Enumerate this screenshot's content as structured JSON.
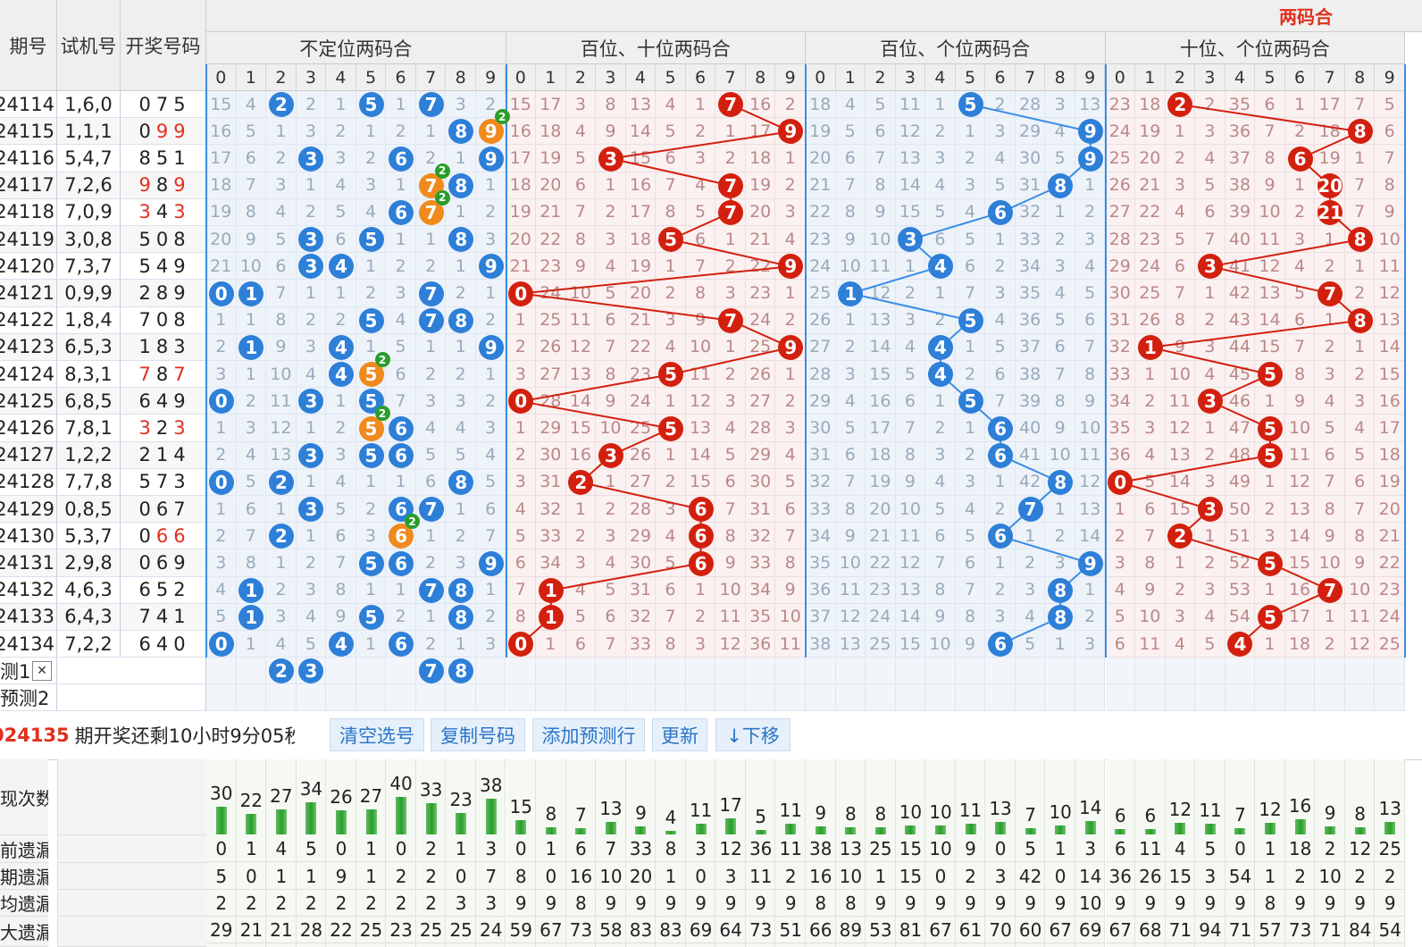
{
  "header": {
    "col_period": "期号",
    "col_trial": "试机号",
    "col_result": "开奖号码",
    "top_label": "两码合",
    "groups": [
      "不定位两码合",
      "百位、十位两码合",
      "百位、个位两码合",
      "十位、个位两码合"
    ]
  },
  "rows": [
    {
      "period": "24114",
      "trial": "1,6,0",
      "result": [
        "0",
        "7",
        "5"
      ],
      "red": [
        false,
        false,
        false
      ]
    },
    {
      "period": "24115",
      "trial": "1,1,1",
      "result": [
        "0",
        "9",
        "9"
      ],
      "red": [
        false,
        true,
        true
      ]
    },
    {
      "period": "24116",
      "trial": "5,4,7",
      "result": [
        "8",
        "5",
        "1"
      ],
      "red": [
        false,
        false,
        false
      ]
    },
    {
      "period": "24117",
      "trial": "7,2,6",
      "result": [
        "9",
        "8",
        "9"
      ],
      "red": [
        true,
        false,
        true
      ]
    },
    {
      "period": "24118",
      "trial": "7,0,9",
      "result": [
        "3",
        "4",
        "3"
      ],
      "red": [
        true,
        false,
        true
      ]
    },
    {
      "period": "24119",
      "trial": "3,0,8",
      "result": [
        "5",
        "0",
        "8"
      ],
      "red": [
        false,
        false,
        false
      ]
    },
    {
      "period": "24120",
      "trial": "7,3,7",
      "result": [
        "5",
        "4",
        "9"
      ],
      "red": [
        false,
        false,
        false
      ]
    },
    {
      "period": "24121",
      "trial": "0,9,9",
      "result": [
        "2",
        "8",
        "9"
      ],
      "red": [
        false,
        false,
        false
      ]
    },
    {
      "period": "24122",
      "trial": "1,8,4",
      "result": [
        "7",
        "0",
        "8"
      ],
      "red": [
        false,
        false,
        false
      ]
    },
    {
      "period": "24123",
      "trial": "6,5,3",
      "result": [
        "1",
        "8",
        "3"
      ],
      "red": [
        false,
        false,
        false
      ]
    },
    {
      "period": "24124",
      "trial": "8,3,1",
      "result": [
        "7",
        "8",
        "7"
      ],
      "red": [
        true,
        false,
        true
      ]
    },
    {
      "period": "24125",
      "trial": "6,8,5",
      "result": [
        "6",
        "4",
        "9"
      ],
      "red": [
        false,
        false,
        false
      ]
    },
    {
      "period": "24126",
      "trial": "7,8,1",
      "result": [
        "3",
        "2",
        "3"
      ],
      "red": [
        true,
        false,
        true
      ]
    },
    {
      "period": "24127",
      "trial": "1,2,2",
      "result": [
        "2",
        "1",
        "4"
      ],
      "red": [
        false,
        false,
        false
      ]
    },
    {
      "period": "24128",
      "trial": "7,7,8",
      "result": [
        "5",
        "7",
        "3"
      ],
      "red": [
        false,
        false,
        false
      ]
    },
    {
      "period": "24129",
      "trial": "0,8,5",
      "result": [
        "0",
        "6",
        "7"
      ],
      "red": [
        false,
        false,
        false
      ]
    },
    {
      "period": "24130",
      "trial": "5,3,7",
      "result": [
        "0",
        "6",
        "6"
      ],
      "red": [
        false,
        true,
        true
      ]
    },
    {
      "period": "24131",
      "trial": "2,9,8",
      "result": [
        "0",
        "6",
        "9"
      ],
      "red": [
        false,
        false,
        false
      ]
    },
    {
      "period": "24132",
      "trial": "4,6,3",
      "result": [
        "6",
        "5",
        "2"
      ],
      "red": [
        false,
        false,
        false
      ]
    },
    {
      "period": "24133",
      "trial": "6,4,3",
      "result": [
        "7",
        "4",
        "1"
      ],
      "red": [
        false,
        false,
        false
      ]
    },
    {
      "period": "24134",
      "trial": "7,2,2",
      "result": [
        "6",
        "4",
        "0"
      ],
      "red": [
        false,
        false,
        false
      ]
    }
  ],
  "grid": [
    [
      "15",
      "4",
      "2",
      "2",
      "1",
      "5",
      "1",
      "7",
      "3",
      "2",
      "15",
      "17",
      "3",
      "8",
      "13",
      "4",
      "1",
      "7",
      "16",
      "2",
      "18",
      "4",
      "5",
      "11",
      "1",
      "5",
      "2",
      "28",
      "3",
      "13",
      "23",
      "18",
      "2",
      "2",
      "35",
      "6",
      "1",
      "17",
      "7",
      "5"
    ],
    [
      "16",
      "5",
      "1",
      "3",
      "2",
      "1",
      "2",
      "1",
      "8",
      "9",
      "16",
      "18",
      "4",
      "9",
      "14",
      "5",
      "2",
      "1",
      "17",
      "9",
      "19",
      "5",
      "6",
      "12",
      "2",
      "1",
      "3",
      "29",
      "4",
      "9",
      "24",
      "19",
      "1",
      "3",
      "36",
      "7",
      "2",
      "18",
      "8",
      "6"
    ],
    [
      "17",
      "6",
      "2",
      "3",
      "3",
      "2",
      "6",
      "2",
      "1",
      "9",
      "17",
      "19",
      "5",
      "3",
      "15",
      "6",
      "3",
      "2",
      "18",
      "1",
      "20",
      "6",
      "7",
      "13",
      "3",
      "2",
      "4",
      "30",
      "5",
      "9",
      "25",
      "20",
      "2",
      "4",
      "37",
      "8",
      "6",
      "19",
      "1",
      "7"
    ],
    [
      "18",
      "7",
      "3",
      "1",
      "4",
      "3",
      "1",
      "7",
      "8",
      "1",
      "18",
      "20",
      "6",
      "1",
      "16",
      "7",
      "4",
      "7",
      "19",
      "2",
      "21",
      "7",
      "8",
      "14",
      "4",
      "3",
      "5",
      "31",
      "8",
      "1",
      "26",
      "21",
      "3",
      "5",
      "38",
      "9",
      "1",
      "20",
      "7",
      "8"
    ],
    [
      "19",
      "8",
      "4",
      "2",
      "5",
      "4",
      "6",
      "7",
      "1",
      "2",
      "19",
      "21",
      "7",
      "2",
      "17",
      "8",
      "5",
      "7",
      "20",
      "3",
      "22",
      "8",
      "9",
      "15",
      "5",
      "4",
      "6",
      "32",
      "1",
      "2",
      "27",
      "22",
      "4",
      "6",
      "39",
      "10",
      "2",
      "21",
      "7",
      "9"
    ],
    [
      "20",
      "9",
      "5",
      "3",
      "6",
      "5",
      "1",
      "1",
      "8",
      "3",
      "20",
      "22",
      "8",
      "3",
      "18",
      "5",
      "6",
      "1",
      "21",
      "4",
      "23",
      "9",
      "10",
      "3",
      "6",
      "5",
      "1",
      "33",
      "2",
      "3",
      "28",
      "23",
      "5",
      "7",
      "40",
      "11",
      "3",
      "1",
      "8",
      "10"
    ],
    [
      "21",
      "10",
      "6",
      "3",
      "4",
      "1",
      "2",
      "2",
      "1",
      "9",
      "21",
      "23",
      "9",
      "4",
      "19",
      "1",
      "7",
      "2",
      "22",
      "9",
      "24",
      "10",
      "11",
      "1",
      "4",
      "6",
      "2",
      "34",
      "3",
      "4",
      "29",
      "24",
      "6",
      "3",
      "41",
      "12",
      "4",
      "2",
      "1",
      "11"
    ],
    [
      "0",
      "1",
      "7",
      "1",
      "1",
      "2",
      "3",
      "7",
      "2",
      "1",
      "0",
      "24",
      "10",
      "5",
      "20",
      "2",
      "8",
      "3",
      "23",
      "1",
      "25",
      "1",
      "12",
      "2",
      "1",
      "7",
      "3",
      "35",
      "4",
      "5",
      "30",
      "25",
      "7",
      "1",
      "42",
      "13",
      "5",
      "7",
      "2",
      "12"
    ],
    [
      "1",
      "1",
      "8",
      "2",
      "2",
      "5",
      "4",
      "7",
      "8",
      "2",
      "1",
      "25",
      "11",
      "6",
      "21",
      "3",
      "9",
      "7",
      "24",
      "2",
      "26",
      "1",
      "13",
      "3",
      "2",
      "5",
      "4",
      "36",
      "5",
      "6",
      "31",
      "26",
      "8",
      "2",
      "43",
      "14",
      "6",
      "1",
      "8",
      "13"
    ],
    [
      "2",
      "1",
      "9",
      "3",
      "4",
      "1",
      "5",
      "1",
      "1",
      "9",
      "2",
      "26",
      "12",
      "7",
      "22",
      "4",
      "10",
      "1",
      "25",
      "9",
      "27",
      "2",
      "14",
      "4",
      "4",
      "1",
      "5",
      "37",
      "6",
      "7",
      "32",
      "1",
      "9",
      "3",
      "44",
      "15",
      "7",
      "2",
      "1",
      "14"
    ],
    [
      "3",
      "1",
      "10",
      "4",
      "4",
      "5",
      "6",
      "2",
      "2",
      "1",
      "3",
      "27",
      "13",
      "8",
      "23",
      "5",
      "11",
      "2",
      "26",
      "1",
      "28",
      "3",
      "15",
      "5",
      "4",
      "2",
      "6",
      "38",
      "7",
      "8",
      "33",
      "1",
      "10",
      "4",
      "45",
      "5",
      "8",
      "3",
      "2",
      "15"
    ],
    [
      "0",
      "2",
      "11",
      "3",
      "1",
      "5",
      "7",
      "3",
      "3",
      "2",
      "0",
      "28",
      "14",
      "9",
      "24",
      "1",
      "12",
      "3",
      "27",
      "2",
      "29",
      "4",
      "16",
      "6",
      "1",
      "5",
      "7",
      "39",
      "8",
      "9",
      "34",
      "2",
      "11",
      "3",
      "46",
      "1",
      "9",
      "4",
      "3",
      "16"
    ],
    [
      "1",
      "3",
      "12",
      "1",
      "2",
      "5",
      "6",
      "4",
      "4",
      "3",
      "1",
      "29",
      "15",
      "10",
      "25",
      "5",
      "13",
      "4",
      "28",
      "3",
      "30",
      "5",
      "17",
      "7",
      "2",
      "1",
      "6",
      "40",
      "9",
      "10",
      "35",
      "3",
      "12",
      "1",
      "47",
      "5",
      "10",
      "5",
      "4",
      "17"
    ],
    [
      "2",
      "4",
      "13",
      "3",
      "3",
      "5",
      "6",
      "5",
      "5",
      "4",
      "2",
      "30",
      "16",
      "3",
      "26",
      "1",
      "14",
      "5",
      "29",
      "4",
      "31",
      "6",
      "18",
      "8",
      "3",
      "2",
      "6",
      "41",
      "10",
      "11",
      "36",
      "4",
      "13",
      "2",
      "48",
      "5",
      "11",
      "6",
      "5",
      "18"
    ],
    [
      "0",
      "5",
      "2",
      "1",
      "4",
      "1",
      "1",
      "6",
      "8",
      "5",
      "3",
      "31",
      "2",
      "1",
      "27",
      "2",
      "15",
      "6",
      "30",
      "5",
      "32",
      "7",
      "19",
      "9",
      "4",
      "3",
      "1",
      "42",
      "8",
      "12",
      "0",
      "5",
      "14",
      "3",
      "49",
      "1",
      "12",
      "7",
      "6",
      "19"
    ],
    [
      "1",
      "6",
      "1",
      "3",
      "5",
      "2",
      "6",
      "7",
      "1",
      "6",
      "4",
      "32",
      "1",
      "2",
      "28",
      "3",
      "6",
      "7",
      "31",
      "6",
      "33",
      "8",
      "20",
      "10",
      "5",
      "4",
      "2",
      "7",
      "1",
      "13",
      "1",
      "6",
      "15",
      "3",
      "50",
      "2",
      "13",
      "8",
      "7",
      "20"
    ],
    [
      "2",
      "7",
      "2",
      "1",
      "6",
      "3",
      "6",
      "1",
      "2",
      "7",
      "5",
      "33",
      "2",
      "3",
      "29",
      "4",
      "6",
      "8",
      "32",
      "7",
      "34",
      "9",
      "21",
      "11",
      "6",
      "5",
      "6",
      "1",
      "2",
      "14",
      "2",
      "7",
      "2",
      "1",
      "51",
      "3",
      "14",
      "9",
      "8",
      "21"
    ],
    [
      "3",
      "8",
      "1",
      "2",
      "7",
      "5",
      "6",
      "2",
      "3",
      "9",
      "6",
      "34",
      "3",
      "4",
      "30",
      "5",
      "6",
      "9",
      "33",
      "8",
      "35",
      "10",
      "22",
      "12",
      "7",
      "6",
      "1",
      "2",
      "3",
      "9",
      "3",
      "8",
      "1",
      "2",
      "52",
      "5",
      "15",
      "10",
      "9",
      "22"
    ],
    [
      "4",
      "1",
      "2",
      "3",
      "8",
      "1",
      "1",
      "7",
      "8",
      "1",
      "7",
      "1",
      "4",
      "5",
      "31",
      "6",
      "1",
      "10",
      "34",
      "9",
      "36",
      "11",
      "23",
      "13",
      "8",
      "7",
      "2",
      "3",
      "8",
      "1",
      "4",
      "9",
      "2",
      "3",
      "53",
      "1",
      "16",
      "7",
      "10",
      "23"
    ],
    [
      "5",
      "1",
      "3",
      "4",
      "9",
      "5",
      "2",
      "1",
      "8",
      "2",
      "8",
      "1",
      "5",
      "6",
      "32",
      "7",
      "2",
      "11",
      "35",
      "10",
      "37",
      "12",
      "24",
      "14",
      "9",
      "8",
      "3",
      "4",
      "8",
      "2",
      "5",
      "10",
      "3",
      "4",
      "54",
      "5",
      "17",
      "1",
      "11",
      "24"
    ],
    [
      "0",
      "1",
      "4",
      "5",
      "4",
      "1",
      "6",
      "2",
      "1",
      "3",
      "0",
      "1",
      "6",
      "7",
      "33",
      "8",
      "3",
      "12",
      "36",
      "11",
      "38",
      "13",
      "25",
      "15",
      "10",
      "9",
      "6",
      "5",
      "1",
      "3",
      "6",
      "11",
      "4",
      "5",
      "4",
      "1",
      "18",
      "2",
      "12",
      "25"
    ]
  ],
  "balls_first_group": [
    [
      2,
      5,
      7
    ],
    [
      8,
      9
    ],
    [
      3,
      6,
      9
    ],
    [
      7,
      8
    ],
    [
      6,
      7
    ],
    [
      3,
      5,
      8
    ],
    [
      3,
      4,
      9
    ],
    [
      0,
      1,
      7
    ],
    [
      5,
      7,
      8
    ],
    [
      1,
      4,
      9
    ],
    [
      4,
      5
    ],
    [
      0,
      3,
      5
    ],
    [
      5,
      6
    ],
    [
      3,
      5,
      6
    ],
    [
      0,
      2,
      8
    ],
    [
      3,
      6,
      7
    ],
    [
      2,
      6
    ],
    [
      5,
      6,
      9
    ],
    [
      1,
      7,
      8
    ],
    [
      1,
      5,
      8
    ],
    [
      0,
      4,
      6
    ]
  ],
  "orange_balls": [
    [
      1,
      9
    ],
    [
      3,
      7
    ],
    [
      4,
      7
    ],
    [
      10,
      5
    ],
    [
      12,
      5
    ],
    [
      16,
      6
    ]
  ],
  "double_tags": [
    [
      1,
      9
    ],
    [
      3,
      7
    ],
    [
      4,
      7
    ],
    [
      10,
      5
    ],
    [
      12,
      5
    ],
    [
      16,
      6
    ]
  ],
  "double_tag_label": "2",
  "pair_bt": [
    7,
    9,
    3,
    7,
    7,
    5,
    9,
    0,
    7,
    9,
    5,
    0,
    5,
    3,
    2,
    6,
    6,
    6,
    1,
    1,
    0
  ],
  "pair_bg": [
    5,
    9,
    9,
    8,
    6,
    3,
    4,
    1,
    5,
    4,
    4,
    5,
    6,
    6,
    8,
    7,
    6,
    9,
    8,
    8,
    6
  ],
  "pair_tg": [
    2,
    8,
    6,
    7,
    7,
    8,
    3,
    7,
    8,
    1,
    5,
    3,
    5,
    5,
    0,
    3,
    2,
    5,
    7,
    5,
    4
  ],
  "predict": {
    "row1_label": "测1",
    "row2_label": "预测2",
    "close_glyph": "✕",
    "row1_balls": [
      "2",
      "3",
      "7",
      "8"
    ]
  },
  "countdown": {
    "issue": "024135",
    "text": "期开奖还剩10小时9分05秒"
  },
  "buttons": {
    "clear": "清空选号",
    "copy": "复制号码",
    "add_row": "添加预测行",
    "refresh": "更新",
    "move_down": "↓下移"
  },
  "stats": {
    "labels": [
      "现次数",
      "前遗漏",
      "期遗漏",
      "均遗漏",
      "大遗漏"
    ],
    "occurrences": [
      30,
      22,
      27,
      34,
      26,
      27,
      40,
      33,
      23,
      38,
      15,
      8,
      7,
      13,
      9,
      4,
      11,
      17,
      5,
      11,
      9,
      8,
      8,
      10,
      10,
      11,
      13,
      7,
      10,
      14,
      6,
      6,
      12,
      11,
      7,
      12,
      16,
      9,
      8,
      13
    ],
    "current_miss": [
      "0",
      "1",
      "4",
      "5",
      "0",
      "1",
      "0",
      "2",
      "1",
      "3",
      "0",
      "1",
      "6",
      "7",
      "33",
      "8",
      "3",
      "12",
      "36",
      "11",
      "38",
      "13",
      "25",
      "15",
      "10",
      "9",
      "0",
      "5",
      "1",
      "3",
      "6",
      "11",
      "4",
      "5",
      "0",
      "1",
      "18",
      "2",
      "12",
      "25"
    ],
    "last_miss": [
      "5",
      "0",
      "1",
      "1",
      "9",
      "1",
      "2",
      "2",
      "0",
      "7",
      "8",
      "0",
      "16",
      "10",
      "20",
      "1",
      "0",
      "3",
      "11",
      "2",
      "16",
      "10",
      "1",
      "15",
      "0",
      "2",
      "3",
      "42",
      "0",
      "14",
      "36",
      "26",
      "15",
      "3",
      "54",
      "1",
      "2",
      "10",
      "2",
      "2"
    ],
    "avg_miss": [
      "2",
      "2",
      "2",
      "2",
      "2",
      "2",
      "2",
      "2",
      "3",
      "3",
      "9",
      "9",
      "8",
      "9",
      "9",
      "9",
      "9",
      "9",
      "9",
      "9",
      "8",
      "8",
      "9",
      "9",
      "9",
      "9",
      "9",
      "9",
      "9",
      "10",
      "9",
      "9",
      "9",
      "9",
      "9",
      "8",
      "9",
      "9",
      "9",
      "9"
    ],
    "max_miss": [
      "29",
      "21",
      "21",
      "28",
      "22",
      "25",
      "23",
      "25",
      "25",
      "24",
      "59",
      "67",
      "73",
      "58",
      "83",
      "83",
      "69",
      "64",
      "73",
      "51",
      "66",
      "89",
      "53",
      "81",
      "67",
      "61",
      "70",
      "60",
      "67",
      "69",
      "67",
      "68",
      "71",
      "94",
      "71",
      "57",
      "73",
      "71",
      "84",
      "54"
    ]
  },
  "colors": {
    "blue_ball": "#2d7fd8",
    "orange_ball": "#f08a1c",
    "red_ball": "#d3200e",
    "tag_green": "#2a9d2a",
    "group_line_blue": "#3a8ee6",
    "red_text": "#e0301e"
  }
}
